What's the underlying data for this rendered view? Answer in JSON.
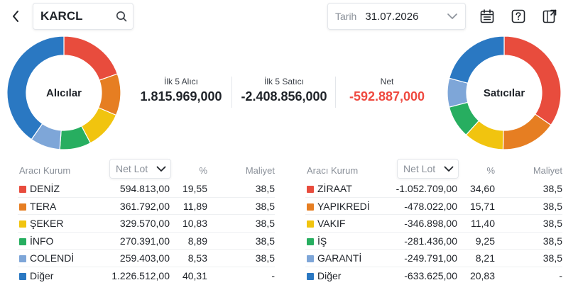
{
  "header": {
    "back_icon": "chevron-left-icon",
    "search": {
      "value": "KARCL",
      "icon": "search-icon"
    },
    "date": {
      "label": "Tarih",
      "value": "31.07.2026",
      "icon": "chevron-down-icon"
    },
    "tools": [
      "calendar-list-icon",
      "help-icon",
      "export-icon"
    ]
  },
  "buyers_chart": {
    "label": "Alıcılar",
    "segments": [
      {
        "name": "DENİZ",
        "pct": 19.55,
        "color": "#e84c3d"
      },
      {
        "name": "TERA",
        "pct": 11.89,
        "color": "#e67e22"
      },
      {
        "name": "ŞEKER",
        "pct": 10.83,
        "color": "#f1c40f"
      },
      {
        "name": "İNFO",
        "pct": 8.89,
        "color": "#27ae60"
      },
      {
        "name": "COLENDİ",
        "pct": 8.53,
        "color": "#7ea6d8"
      },
      {
        "name": "Diğer",
        "pct": 40.31,
        "color": "#2a78c2"
      }
    ]
  },
  "sellers_chart": {
    "label": "Satıcılar",
    "segments": [
      {
        "name": "ZİRAAT",
        "pct": 34.6,
        "color": "#e84c3d"
      },
      {
        "name": "YAPIKREDİ",
        "pct": 15.71,
        "color": "#e67e22"
      },
      {
        "name": "VAKIF",
        "pct": 11.4,
        "color": "#f1c40f"
      },
      {
        "name": "İŞ",
        "pct": 9.25,
        "color": "#27ae60"
      },
      {
        "name": "GARANTİ",
        "pct": 8.21,
        "color": "#7ea6d8"
      },
      {
        "name": "Diğer",
        "pct": 20.83,
        "color": "#2a78c2"
      }
    ]
  },
  "summary": {
    "buyers": {
      "label": "İlk 5 Alıcı",
      "value": "1.815.969,000"
    },
    "sellers": {
      "label": "İlk 5 Satıcı",
      "value": "-2.408.856,000"
    },
    "net": {
      "label": "Net",
      "value": "-592.887,000"
    }
  },
  "table_headers": {
    "name": "Aracı Kurum",
    "lot": "Net Lot",
    "pct": "%",
    "cost": "Maliyet"
  },
  "buyers_table": [
    {
      "name": "DENİZ",
      "lot": "594.813,00",
      "pct": "19,55",
      "cost": "38,5",
      "color": "#e84c3d"
    },
    {
      "name": "TERA",
      "lot": "361.792,00",
      "pct": "11,89",
      "cost": "38,5",
      "color": "#e67e22"
    },
    {
      "name": "ŞEKER",
      "lot": "329.570,00",
      "pct": "10,83",
      "cost": "38,5",
      "color": "#f1c40f"
    },
    {
      "name": "İNFO",
      "lot": "270.391,00",
      "pct": "8,89",
      "cost": "38,5",
      "color": "#27ae60"
    },
    {
      "name": "COLENDİ",
      "lot": "259.403,00",
      "pct": "8,53",
      "cost": "38,5",
      "color": "#7ea6d8"
    },
    {
      "name": "Diğer",
      "lot": "1.226.512,00",
      "pct": "40,31",
      "cost": "-",
      "color": "#2a78c2"
    }
  ],
  "sellers_table": [
    {
      "name": "ZİRAAT",
      "lot": "-1.052.709,00",
      "pct": "34,60",
      "cost": "38,5",
      "color": "#e84c3d"
    },
    {
      "name": "YAPIKREDİ",
      "lot": "-478.022,00",
      "pct": "15,71",
      "cost": "38,5",
      "color": "#e67e22"
    },
    {
      "name": "VAKIF",
      "lot": "-346.898,00",
      "pct": "11,40",
      "cost": "38,5",
      "color": "#f1c40f"
    },
    {
      "name": "İŞ",
      "lot": "-281.436,00",
      "pct": "9,25",
      "cost": "38,5",
      "color": "#27ae60"
    },
    {
      "name": "GARANTİ",
      "lot": "-249.791,00",
      "pct": "8,21",
      "cost": "38,5",
      "color": "#7ea6d8"
    },
    {
      "name": "Diğer",
      "lot": "-633.625,00",
      "pct": "20,83",
      "cost": "-",
      "color": "#2a78c2"
    }
  ]
}
